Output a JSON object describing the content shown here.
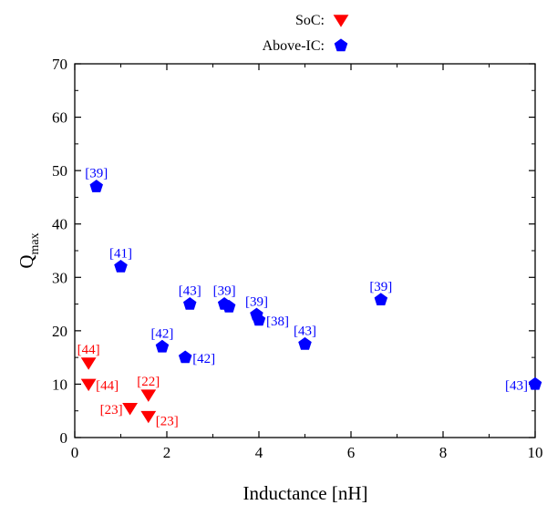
{
  "chart_data": {
    "type": "scatter",
    "xlabel": "Inductance [nH]",
    "ylabel": {
      "main": "Q",
      "subscript": "max"
    },
    "xlim": [
      0,
      10
    ],
    "ylim": [
      0,
      70
    ],
    "x_ticks": [
      0,
      2,
      4,
      6,
      8,
      10
    ],
    "y_ticks": [
      0,
      10,
      20,
      30,
      40,
      50,
      60,
      70
    ],
    "grid": false,
    "legend_position": "top-center",
    "series": [
      {
        "name": "SoC:",
        "marker": "triangle-down",
        "color": "#ff0000",
        "points": [
          {
            "x": 0.3,
            "y": 14,
            "label": "[44]"
          },
          {
            "x": 0.3,
            "y": 10,
            "label": "[44]"
          },
          {
            "x": 1.6,
            "y": 8,
            "label": "[22]"
          },
          {
            "x": 1.2,
            "y": 5.5,
            "label": "[23]"
          },
          {
            "x": 1.6,
            "y": 4,
            "label": "[23]"
          }
        ]
      },
      {
        "name": "Above-IC:",
        "marker": "pentagon",
        "color": "#0000ff",
        "points": [
          {
            "x": 0.47,
            "y": 47,
            "label": "[39]"
          },
          {
            "x": 1.0,
            "y": 32,
            "label": "[41]"
          },
          {
            "x": 1.9,
            "y": 17,
            "label": "[42]"
          },
          {
            "x": 2.4,
            "y": 15,
            "label": "[42]"
          },
          {
            "x": 2.5,
            "y": 25,
            "label": "[43]"
          },
          {
            "x": 3.25,
            "y": 25,
            "label": "[39]"
          },
          {
            "x": 3.35,
            "y": 24.5,
            "label": ""
          },
          {
            "x": 3.95,
            "y": 23,
            "label": "[39]"
          },
          {
            "x": 4.0,
            "y": 22,
            "label": "[38]"
          },
          {
            "x": 5.0,
            "y": 17.5,
            "label": "[43]"
          },
          {
            "x": 6.65,
            "y": 25.8,
            "label": "[39]"
          },
          {
            "x": 10.0,
            "y": 10,
            "label": "[43]"
          }
        ]
      }
    ]
  }
}
